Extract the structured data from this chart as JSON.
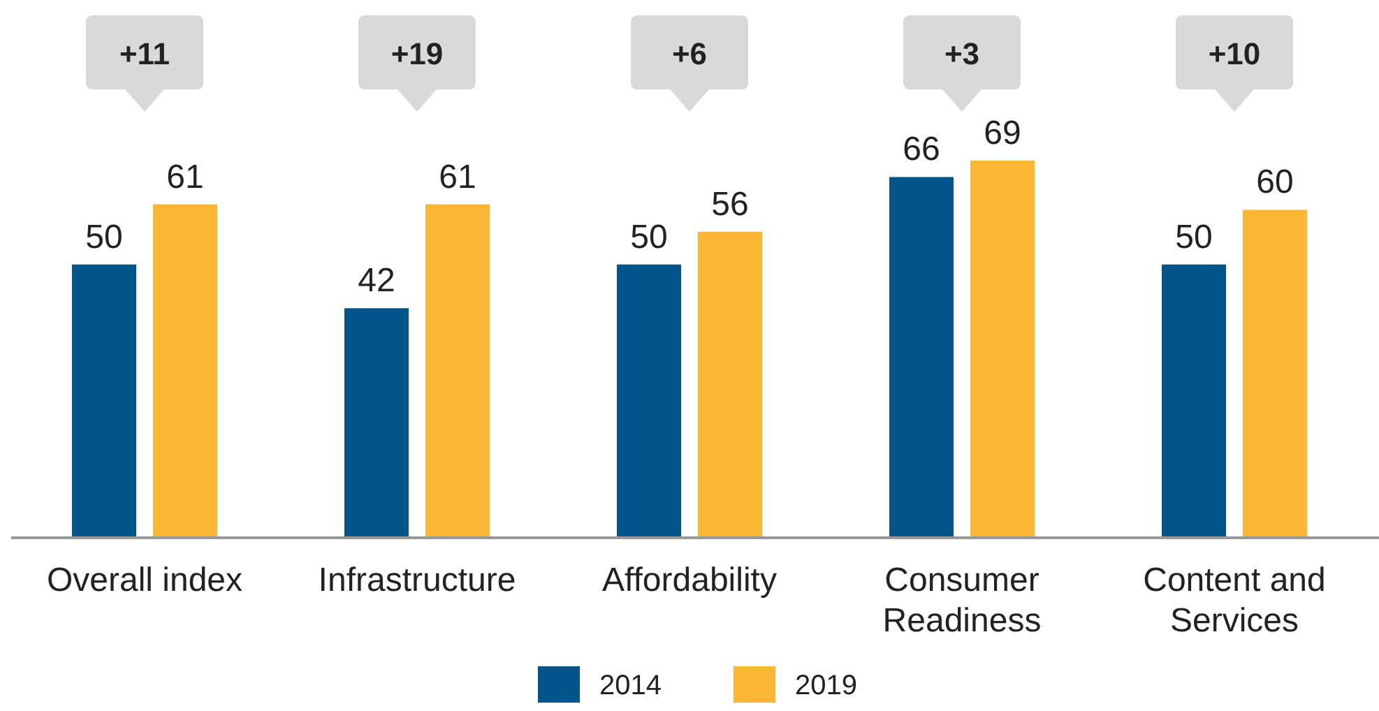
{
  "chart_data": {
    "type": "bar",
    "categories": [
      "Overall index",
      "Infrastructure",
      "Affordability",
      "Consumer Readiness",
      "Content and Services"
    ],
    "series": [
      {
        "name": "2014",
        "color": "#02558b",
        "values": [
          50,
          42,
          50,
          66,
          50
        ]
      },
      {
        "name": "2019",
        "color": "#fbb734",
        "values": [
          61,
          61,
          56,
          69,
          60
        ]
      }
    ],
    "data_labels": true,
    "legend": "bottom",
    "annotations": [
      "+11",
      "+19",
      "+6",
      "+3",
      "+10"
    ]
  }
}
